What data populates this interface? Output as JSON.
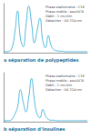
{
  "chart_data": [
    {
      "type": "line",
      "title": "a séparation de polypeptides",
      "annotations": [
        "Phase stationnaire : C18",
        "Phase mobile : eau/ACN",
        "Débit : 1 mL/min",
        "Détection : UV 214 nm"
      ],
      "x": [
        0,
        1,
        2,
        3,
        4,
        5,
        6,
        7,
        8,
        9,
        10,
        11,
        12,
        13,
        14,
        15,
        16,
        17,
        18,
        19,
        20,
        21,
        22,
        23,
        24,
        25,
        26,
        27,
        28,
        29,
        30
      ],
      "values": [
        2,
        2,
        3,
        10,
        40,
        85,
        30,
        12,
        55,
        95,
        60,
        20,
        45,
        70,
        25,
        10,
        35,
        15,
        6,
        4,
        3,
        3,
        2,
        2,
        2,
        2,
        2,
        2,
        2,
        2,
        2
      ],
      "xlim": [
        0,
        30
      ],
      "ylim": [
        0,
        100
      ],
      "color": "#29a8d8",
      "grid": false,
      "tick_labels": false
    },
    {
      "type": "line",
      "title": "b séparation d'insulines",
      "annotations": [
        "Phase stationnaire : C18",
        "Phase mobile : eau/ACN",
        "Débit : 1 mL/min",
        "Détection : UV 214 nm"
      ],
      "x": [
        0,
        1,
        2,
        3,
        4,
        5,
        6,
        7,
        8,
        9,
        10,
        11,
        12,
        13,
        14,
        15,
        16,
        17,
        18,
        19,
        20,
        21,
        22,
        23,
        24,
        25,
        26,
        27,
        28,
        29,
        30
      ],
      "values": [
        2,
        2,
        2,
        5,
        15,
        30,
        65,
        40,
        20,
        50,
        88,
        45,
        15,
        8,
        25,
        12,
        5,
        3,
        3,
        2,
        2,
        2,
        2,
        2,
        2,
        2,
        2,
        2,
        2,
        2,
        2
      ],
      "xlim": [
        0,
        30
      ],
      "ylim": [
        0,
        100
      ],
      "color": "#29a8d8",
      "grid": false,
      "tick_labels": false
    }
  ]
}
